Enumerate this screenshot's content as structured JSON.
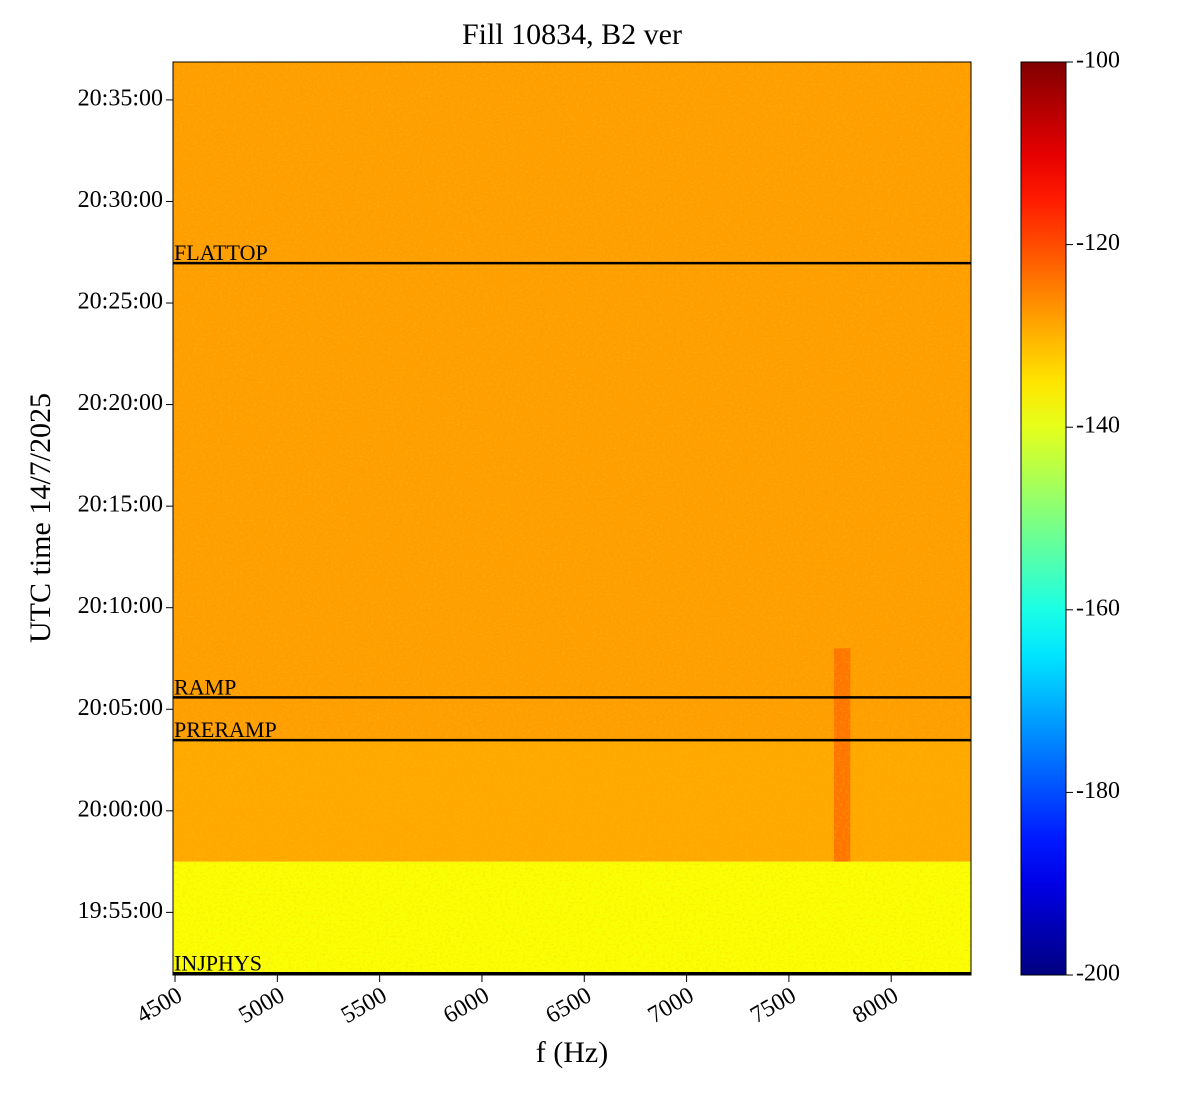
{
  "chart_data": {
    "type": "heatmap",
    "title": "Fill 10834, B2 ver",
    "x_label": "f (Hz)",
    "y_label": "UTC time 14/7/2025",
    "xlim": [
      4490,
      8390
    ],
    "xticks": [
      4500,
      5000,
      5500,
      6000,
      6500,
      7000,
      7500,
      8000
    ],
    "ylim": [
      71515,
      74212
    ],
    "yticks": [
      {
        "value": 71700,
        "label": "19:55:00"
      },
      {
        "value": 72000,
        "label": "20:00:00"
      },
      {
        "value": 72300,
        "label": "20:05:00"
      },
      {
        "value": 72600,
        "label": "20:10:00"
      },
      {
        "value": 72900,
        "label": "20:15:00"
      },
      {
        "value": 73200,
        "label": "20:20:00"
      },
      {
        "value": 73500,
        "label": "20:25:00"
      },
      {
        "value": 73800,
        "label": "20:30:00"
      },
      {
        "value": 74100,
        "label": "20:35:00"
      }
    ],
    "colormap": "jet",
    "clim": [
      -200,
      -100
    ],
    "cticks": [
      -200,
      -180,
      -160,
      -140,
      -120,
      -100
    ],
    "regions": [
      {
        "f": [
          4490,
          8390
        ],
        "t": [
          71515,
          71850
        ],
        "value": -138
      },
      {
        "f": [
          4490,
          8390
        ],
        "t": [
          71850,
          72209
        ],
        "value": -129
      },
      {
        "f": [
          4490,
          8390
        ],
        "t": [
          72209,
          74212
        ],
        "value": -128
      },
      {
        "f": [
          7720,
          7800
        ],
        "t": [
          71850,
          72480
        ],
        "value": -124
      }
    ],
    "events": [
      {
        "label": "INJPHYS",
        "t": 71520
      },
      {
        "label": "PRERAMP",
        "t": 72209
      },
      {
        "label": "RAMP",
        "t": 72335
      },
      {
        "label": "FLATTOP",
        "t": 73618
      }
    ]
  }
}
